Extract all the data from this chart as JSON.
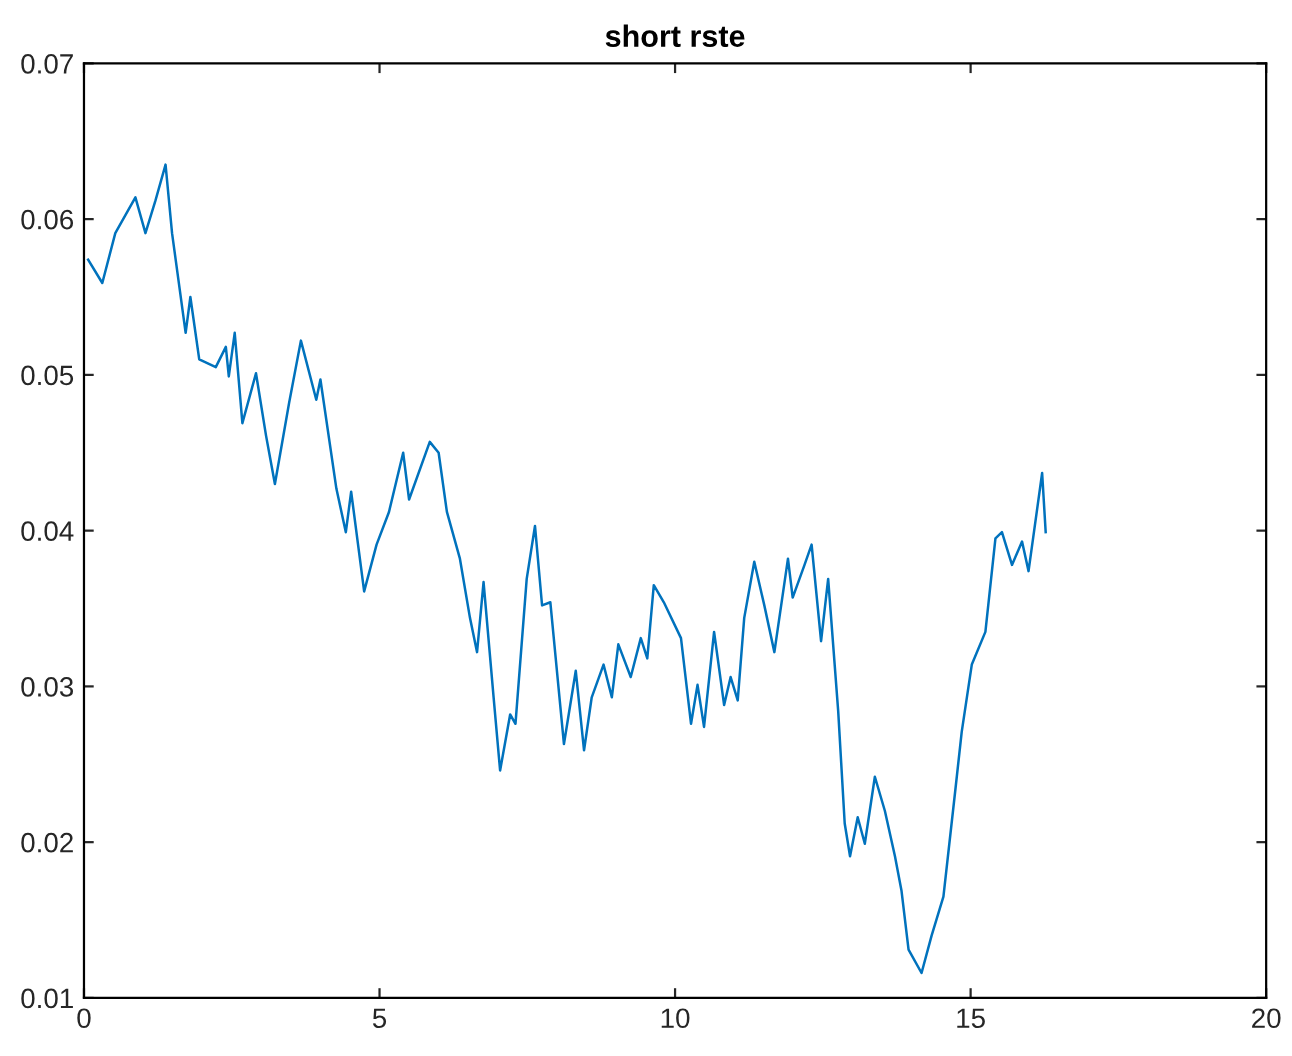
{
  "chart_data": {
    "type": "line",
    "title": "short rste",
    "xlim": [
      0,
      20
    ],
    "xticks": [
      0,
      5,
      10,
      15,
      20
    ],
    "ylim": [
      0.01,
      0.07
    ],
    "yticks": [
      {
        "value": 0.01,
        "label": "0.01"
      },
      {
        "value": 0.02,
        "label": "0.02"
      },
      {
        "value": 0.03,
        "label": "0.03"
      },
      {
        "value": 0.04,
        "label": "0.04"
      },
      {
        "value": 0.05,
        "label": "0.05"
      },
      {
        "value": 0.06,
        "label": "0.06"
      },
      {
        "value": 0.07,
        "label": "0.07"
      }
    ],
    "grid": false,
    "legend": false,
    "marker": "none",
    "line_style": "solid",
    "series": [
      {
        "color": "#0072bd",
        "x": [
          0.07,
          0.31,
          0.53,
          0.87,
          1.04,
          1.21,
          1.38,
          1.49,
          1.72,
          1.8,
          1.95,
          2.23,
          2.4,
          2.45,
          2.55,
          2.68,
          2.91,
          3.08,
          3.23,
          3.47,
          3.67,
          3.93,
          4.0,
          4.27,
          4.43,
          4.52,
          4.74,
          4.95,
          5.16,
          5.4,
          5.5,
          5.85,
          6.0,
          6.14,
          6.36,
          6.53,
          6.65,
          6.76,
          6.93,
          7.04,
          7.21,
          7.3,
          7.49,
          7.63,
          7.75,
          7.89,
          8.12,
          8.32,
          8.46,
          8.59,
          8.79,
          8.93,
          9.04,
          9.25,
          9.42,
          9.53,
          9.64,
          9.81,
          10.1,
          10.27,
          10.38,
          10.49,
          10.66,
          10.83,
          10.94,
          11.06,
          11.17,
          11.34,
          11.51,
          11.68,
          11.91,
          11.99,
          12.19,
          12.31,
          12.47,
          12.59,
          12.76,
          12.87,
          12.96,
          13.09,
          13.21,
          13.38,
          13.55,
          13.72,
          13.83,
          13.95,
          14.17,
          14.34,
          14.54,
          14.74,
          14.85,
          15.02,
          15.25,
          15.42,
          15.53,
          15.7,
          15.87,
          15.98,
          16.21,
          16.27
        ],
        "values": [
          0.0574,
          0.0559,
          0.0591,
          0.0614,
          0.0591,
          0.0612,
          0.0635,
          0.0591,
          0.0527,
          0.055,
          0.051,
          0.0505,
          0.0518,
          0.0499,
          0.0527,
          0.0469,
          0.0501,
          0.0461,
          0.043,
          0.0482,
          0.0522,
          0.0484,
          0.0497,
          0.0427,
          0.0399,
          0.0425,
          0.0361,
          0.0391,
          0.0412,
          0.045,
          0.042,
          0.0457,
          0.045,
          0.0412,
          0.0382,
          0.0344,
          0.0322,
          0.0367,
          0.0293,
          0.0246,
          0.0282,
          0.0276,
          0.0369,
          0.0403,
          0.0352,
          0.0354,
          0.0263,
          0.031,
          0.0259,
          0.0293,
          0.0314,
          0.0293,
          0.0327,
          0.0306,
          0.0331,
          0.0318,
          0.0365,
          0.0354,
          0.0331,
          0.0276,
          0.0301,
          0.0274,
          0.0335,
          0.0288,
          0.0306,
          0.0291,
          0.0344,
          0.038,
          0.0352,
          0.0322,
          0.0382,
          0.0357,
          0.0378,
          0.0391,
          0.0329,
          0.0369,
          0.0284,
          0.0212,
          0.0191,
          0.0216,
          0.0199,
          0.0242,
          0.022,
          0.0191,
          0.0169,
          0.0131,
          0.0116,
          0.014,
          0.0165,
          0.0233,
          0.0271,
          0.0314,
          0.0335,
          0.0395,
          0.0399,
          0.0378,
          0.0393,
          0.0374,
          0.0437,
          0.0399
        ]
      }
    ]
  }
}
